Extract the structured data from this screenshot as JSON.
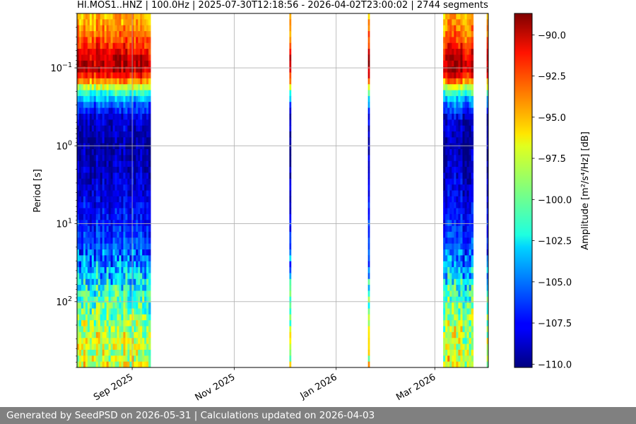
{
  "chart_data": {
    "type": "heatmap",
    "title": "HI.MOS1..HNZ | 100.0Hz | 2025-07-30T12:18:56 - 2026-04-02T23:00:02 | 2744 segments",
    "xlabel": "",
    "ylabel": "Period [s]",
    "colorbar_label": "Amplitude [m²/s⁴/Hz] [dB]",
    "colormap": "jet",
    "y_scale": "log",
    "y_inverted": true,
    "ylim": [
      0.02,
      700
    ],
    "xlim": [
      "2025-07-30",
      "2026-04-02"
    ],
    "grid": true,
    "x_ticks": [
      {
        "date": "2025-09-01",
        "label": "Sep 2025"
      },
      {
        "date": "2025-11-01",
        "label": "Nov 2025"
      },
      {
        "date": "2026-01-01",
        "label": "Jan 2026"
      },
      {
        "date": "2026-03-01",
        "label": "Mar 2026"
      }
    ],
    "y_ticks": [
      {
        "value": 0.1,
        "base": "10",
        "exp": "−1"
      },
      {
        "value": 1,
        "base": "10",
        "exp": "0"
      },
      {
        "value": 10,
        "base": "10",
        "exp": "1"
      },
      {
        "value": 100,
        "base": "10",
        "exp": "2"
      }
    ],
    "colorbar_range": [
      -110.2,
      -88.7
    ],
    "colorbar_ticks": [
      {
        "value": -90,
        "label": "−90.0"
      },
      {
        "value": -92.5,
        "label": "−92.5"
      },
      {
        "value": -95,
        "label": "−95.0"
      },
      {
        "value": -97.5,
        "label": "−97.5"
      },
      {
        "value": -100,
        "label": "−100.0"
      },
      {
        "value": -102.5,
        "label": "−102.5"
      },
      {
        "value": -105,
        "label": "−105.0"
      },
      {
        "value": -107.5,
        "label": "−107.5"
      },
      {
        "value": -110,
        "label": "−110.0"
      }
    ],
    "data_blocks": [
      {
        "start": "2025-07-30",
        "end": "2025-09-12"
      },
      {
        "start": "2025-12-04",
        "end": "2025-12-05"
      },
      {
        "start": "2026-01-20",
        "end": "2026-01-21"
      },
      {
        "start": "2026-03-06",
        "end": "2026-03-24"
      },
      {
        "start": "2026-04-01",
        "end": "2026-04-02"
      }
    ],
    "amplitude_profile": [
      {
        "period": 0.02,
        "db": -95.5
      },
      {
        "period": 0.03,
        "db": -94.5
      },
      {
        "period": 0.05,
        "db": -92.5
      },
      {
        "period": 0.07,
        "db": -90.5
      },
      {
        "period": 0.1,
        "db": -89.5
      },
      {
        "period": 0.13,
        "db": -92.0
      },
      {
        "period": 0.17,
        "db": -97.0
      },
      {
        "period": 0.22,
        "db": -102.0
      },
      {
        "period": 0.3,
        "db": -105.5
      },
      {
        "period": 0.45,
        "db": -108.5
      },
      {
        "period": 1,
        "db": -109.5
      },
      {
        "period": 3,
        "db": -108.5
      },
      {
        "period": 10,
        "db": -107.0
      },
      {
        "period": 25,
        "db": -105.5
      },
      {
        "period": 50,
        "db": -103.0
      },
      {
        "period": 100,
        "db": -100.5
      },
      {
        "period": 200,
        "db": -98.5
      },
      {
        "period": 700,
        "db": -97.5
      }
    ]
  },
  "footer": {
    "text": "Generated by SeedPSD on 2026-05-31 | Calculations updated on 2026-04-03"
  }
}
